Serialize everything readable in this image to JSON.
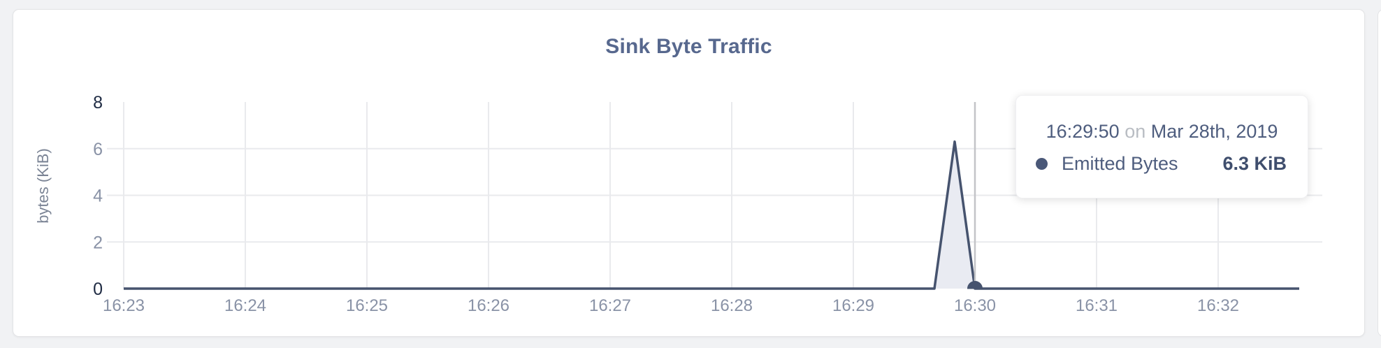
{
  "card": {
    "title": "Sink Byte Traffic"
  },
  "chart_data": {
    "type": "area",
    "title": "Sink Byte Traffic",
    "xlabel": "",
    "ylabel": "bytes (KiB)",
    "ylim": [
      0,
      8
    ],
    "y_ticks": [
      0,
      2,
      4,
      6,
      8
    ],
    "y_grid_values": [
      2,
      4,
      6
    ],
    "y_minmax_ticks": [
      0,
      8
    ],
    "x_tick_labels": [
      "16:23",
      "16:24",
      "16:25",
      "16:26",
      "16:27",
      "16:28",
      "16:29",
      "16:30",
      "16:31",
      "16:32"
    ],
    "x_domain": [
      "16:23:00",
      "16:32:40"
    ],
    "grid": true,
    "legend_position": "none",
    "series": [
      {
        "name": "Emitted Bytes",
        "color": "#46536e",
        "fill": "#e9ebf2",
        "points": [
          [
            "16:23:00",
            0
          ],
          [
            "16:29:40",
            0
          ],
          [
            "16:29:50",
            6.3
          ],
          [
            "16:30:00",
            0
          ],
          [
            "16:32:40",
            0
          ]
        ]
      }
    ],
    "hover": {
      "guideline_x": "16:30:00",
      "marker_x": "16:30:00",
      "marker_y": 0
    },
    "colors": {
      "grid_line": "#e9eaed",
      "guideline": "#c3c4c7",
      "tick_label": "#8992a6",
      "tick_label_minmax": "#202c44",
      "axis_title": "#7b8495"
    }
  },
  "tooltip": {
    "time": "16:29:50",
    "connector": "on",
    "date": "Mar 28th, 2019",
    "series_label": "Emitted Bytes",
    "value": "6.3 KiB",
    "dot_color": "#4a5878"
  }
}
